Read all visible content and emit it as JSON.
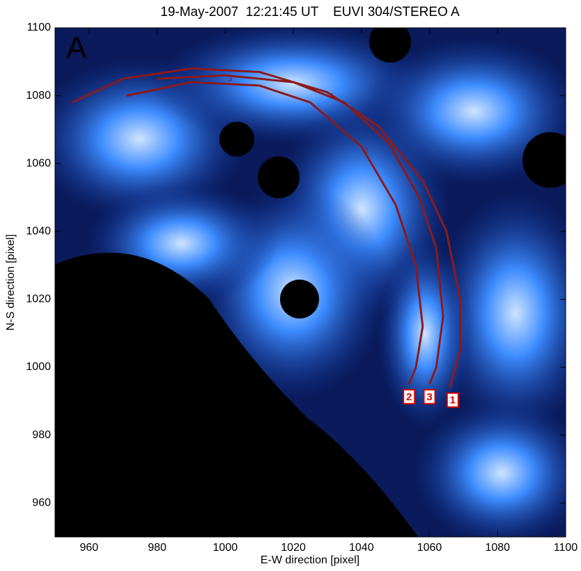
{
  "chart_data": {
    "type": "image",
    "title": "19-May-2007  12:21:45 UT    EUVI 304/STEREO A",
    "panel_label": "A",
    "x_label": "E-W direction [pixel]",
    "y_label": "N-S direction [pixel]",
    "xlim": [
      950,
      1100
    ],
    "ylim": [
      950,
      1100
    ],
    "xticks": [
      960,
      980,
      1000,
      1020,
      1040,
      1060,
      1080,
      1100
    ],
    "yticks": [
      960,
      980,
      1000,
      1020,
      1040,
      1060,
      1080,
      1100
    ],
    "series": [
      {
        "name": "1",
        "color": "#8b1a1a",
        "x": [
          955,
          970,
          990,
          1010,
          1030,
          1045,
          1058,
          1065,
          1069,
          1069,
          1066
        ],
        "y": [
          1078,
          1085,
          1088,
          1087,
          1081,
          1071,
          1055,
          1040,
          1020,
          1005,
          994
        ]
      },
      {
        "name": "2",
        "color": "#8b1a1a",
        "x": [
          971,
          990,
          1010,
          1025,
          1040,
          1050,
          1056,
          1058,
          1056,
          1054
        ],
        "y": [
          1080,
          1084,
          1083,
          1078,
          1065,
          1048,
          1030,
          1012,
          1000,
          995
        ]
      },
      {
        "name": "3",
        "color": "#8b1a1a",
        "x": [
          980,
          1000,
          1020,
          1035,
          1048,
          1057,
          1062,
          1064,
          1062,
          1060
        ],
        "y": [
          1085,
          1086,
          1084,
          1078,
          1066,
          1050,
          1035,
          1015,
          1000,
          995
        ]
      }
    ]
  }
}
